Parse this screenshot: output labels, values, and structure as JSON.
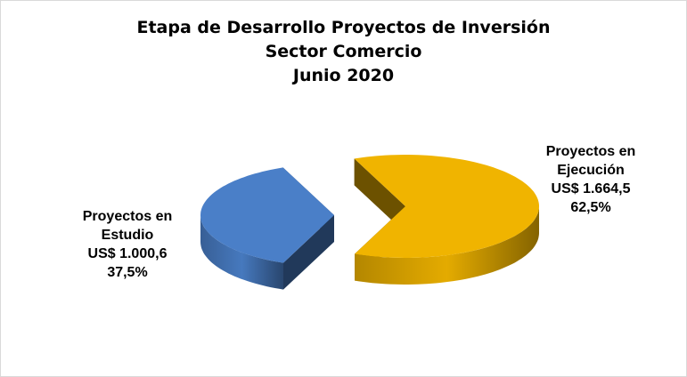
{
  "chart_data": {
    "type": "pie",
    "title": "Etapa de Desarrollo Proyectos de Inversión",
    "subtitle": "Sector Comercio",
    "date": "Junio 2020",
    "categories": [
      "Proyectos en Ejecución",
      "Proyectos en Estudio"
    ],
    "values": [
      1664.5,
      1000.6
    ],
    "value_labels": [
      "US$ 1.664,5",
      "US$ 1.000,6"
    ],
    "percent_labels": [
      "62,5%",
      "37,5%"
    ],
    "colors": [
      "#f0b400",
      "#4a7fc8"
    ]
  }
}
